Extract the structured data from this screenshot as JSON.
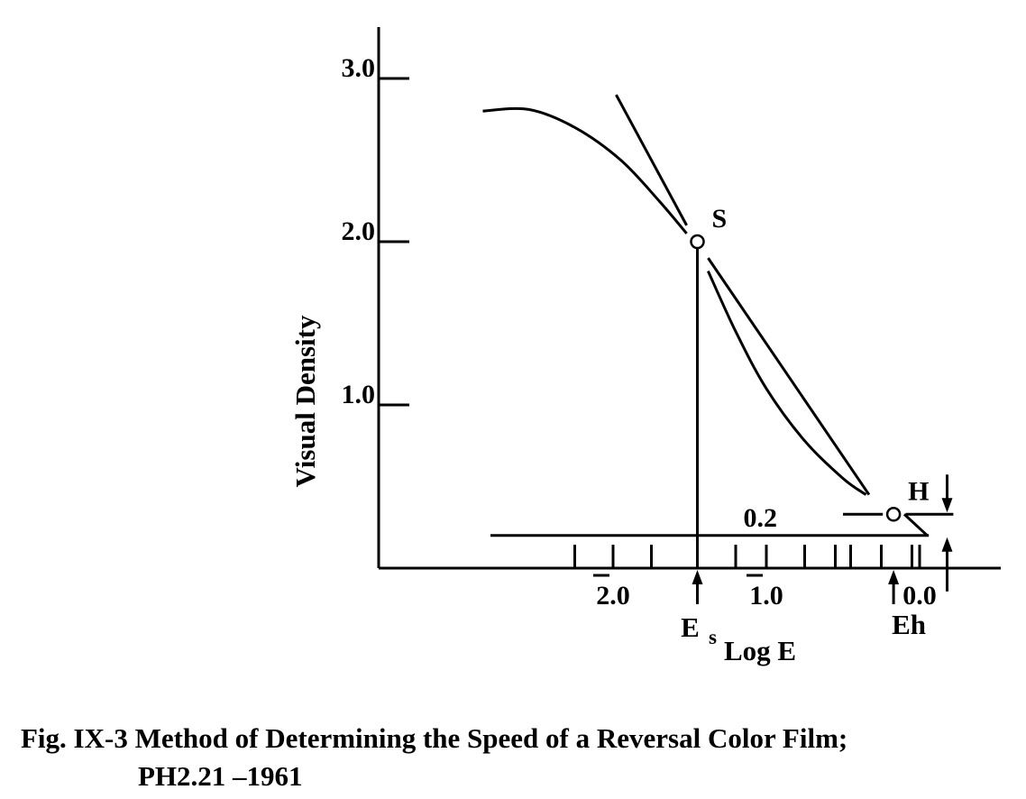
{
  "chart_data": {
    "type": "line",
    "title": "",
    "xlabel": "Log E",
    "ylabel": "Visual Density",
    "x_axis_direction": "increasing to the right",
    "x_ticks": [
      {
        "value": -2.0,
        "label": "2.0",
        "bar_over_integer": true
      },
      {
        "value": -1.0,
        "label": "1.0",
        "bar_over_integer": true
      },
      {
        "value": 0.0,
        "label": "0.0",
        "bar_over_integer": false
      }
    ],
    "y_ticks": [
      {
        "value": 1.0,
        "label": "1.0"
      },
      {
        "value": 2.0,
        "label": "2.0"
      },
      {
        "value": 3.0,
        "label": "3.0"
      }
    ],
    "xlim": [
      -3.0,
      0.6
    ],
    "ylim": [
      0,
      3.3
    ],
    "grid": false,
    "legend": "none",
    "series": [
      {
        "points": [
          {
            "x": -2.85,
            "y": 2.8
          },
          {
            "x": -2.55,
            "y": 2.81
          },
          {
            "x": -2.25,
            "y": 2.7
          },
          {
            "x": -1.95,
            "y": 2.5
          },
          {
            "x": -1.7,
            "y": 2.25
          },
          {
            "x": -1.52,
            "y": 2.05
          }
        ]
      },
      {
        "points": [
          {
            "x": -1.38,
            "y": 1.82
          },
          {
            "x": -1.2,
            "y": 1.45
          },
          {
            "x": -1.0,
            "y": 1.1
          },
          {
            "x": -0.75,
            "y": 0.78
          },
          {
            "x": -0.5,
            "y": 0.55
          },
          {
            "x": -0.35,
            "y": 0.45
          }
        ]
      },
      {
        "points": [
          {
            "x": -0.1,
            "y": 0.33
          },
          {
            "x": 0.05,
            "y": 0.2
          }
        ]
      }
    ],
    "reference_lines": [
      {
        "from": [
          -1.98,
          2.9
        ],
        "to": [
          -1.52,
          2.1
        ]
      },
      {
        "from": [
          -1.38,
          1.9
        ],
        "to": [
          -0.33,
          0.45
        ]
      },
      {
        "from": [
          -2.8,
          0.2
        ],
        "to": [
          0.06,
          0.2
        ]
      },
      {
        "from": [
          -0.5,
          0.33
        ],
        "to": [
          -0.24,
          0.33
        ]
      },
      {
        "from": [
          -0.09,
          0.33
        ],
        "to": [
          0.22,
          0.33
        ]
      }
    ],
    "points": [
      {
        "name": "S",
        "x": -1.45,
        "y": 2.0
      },
      {
        "name": "H",
        "x": -0.17,
        "y": 0.33
      }
    ],
    "annotations": [
      {
        "text": "0.2",
        "x": -0.45,
        "y": 0.3
      },
      {
        "text": "E",
        "subscript": "s",
        "x": -1.45,
        "below_axis": true
      },
      {
        "text": "Eh",
        "x": -0.17,
        "below_axis": true
      }
    ],
    "extra_x_ticks": [
      -2.25,
      -2.0,
      -1.75,
      -1.2,
      -1.0,
      -0.75,
      -0.55,
      -0.45,
      -0.25,
      -0.05
    ]
  },
  "caption": {
    "line1": "Fig. IX-3 Method of Determining the Speed of a Reversal Color Film;",
    "line2": "PH2.21 –1961"
  }
}
